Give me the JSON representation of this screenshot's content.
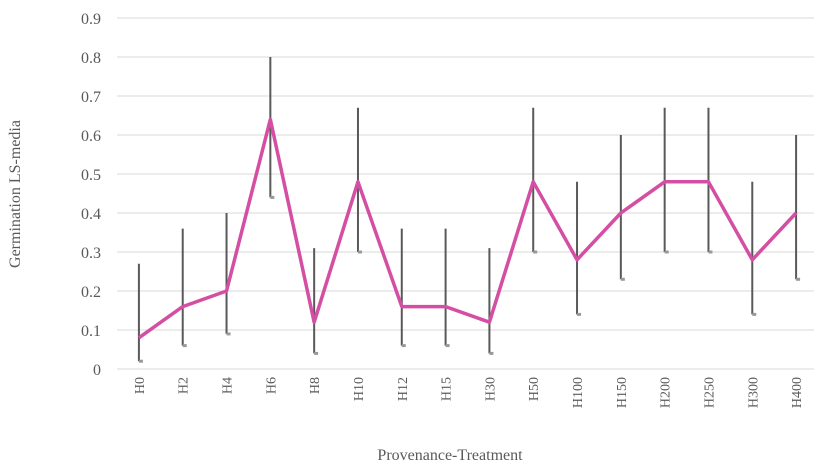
{
  "chart_data": {
    "type": "line",
    "x_label": "Provenance-Treatment",
    "y_label": "Germination LS-media",
    "categories": [
      "H0",
      "H2",
      "H4",
      "H6",
      "H8",
      "H10",
      "H12",
      "H15",
      "H30",
      "H50",
      "H100",
      "H150",
      "H200",
      "H250",
      "H300",
      "H400"
    ],
    "series": [
      {
        "color": "#d44fa3",
        "values": [
          0.08,
          0.16,
          0.2,
          0.64,
          0.12,
          0.48,
          0.16,
          0.16,
          0.12,
          0.48,
          0.28,
          0.4,
          0.48,
          0.48,
          0.28,
          0.4
        ],
        "error_low": [
          0.02,
          0.06,
          0.09,
          0.44,
          0.04,
          0.3,
          0.06,
          0.06,
          0.04,
          0.3,
          0.14,
          0.23,
          0.3,
          0.3,
          0.14,
          0.23
        ],
        "error_high": [
          0.27,
          0.36,
          0.4,
          0.8,
          0.31,
          0.67,
          0.36,
          0.36,
          0.31,
          0.67,
          0.48,
          0.6,
          0.67,
          0.67,
          0.48,
          0.6
        ]
      }
    ],
    "error_color": "#595959",
    "ylim": [
      0,
      0.9
    ],
    "yticks": [
      0,
      0.1,
      0.2,
      0.3,
      0.4,
      0.5,
      0.6,
      0.7,
      0.8,
      0.9
    ],
    "grid": true
  }
}
